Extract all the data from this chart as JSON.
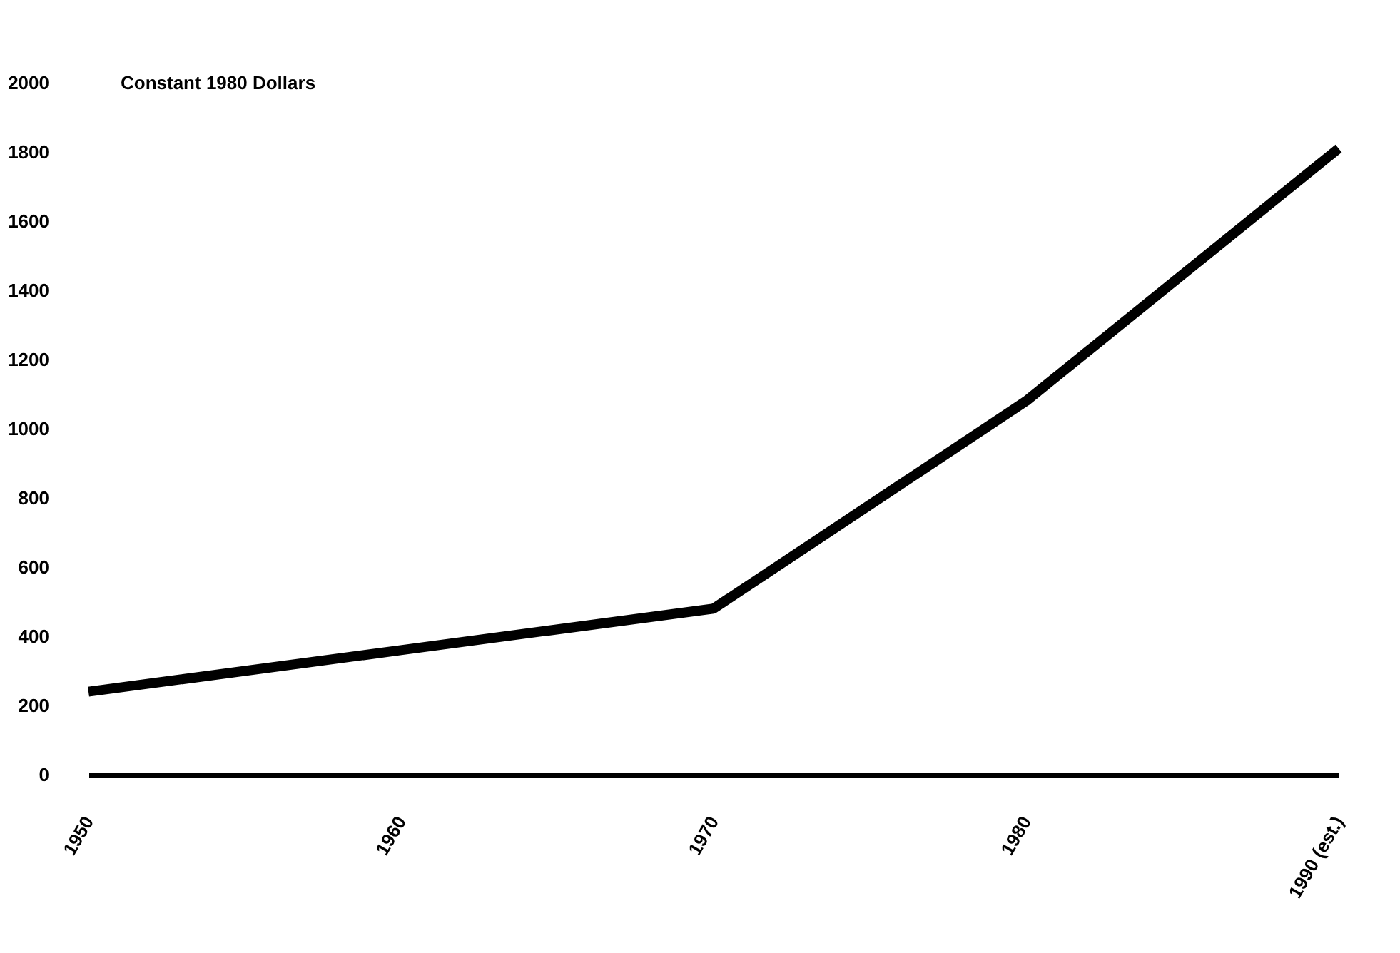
{
  "chart_data": {
    "type": "line",
    "ylabel": "Constant 1980 Dollars",
    "categories": [
      "1950",
      "1960",
      "1970",
      "1980",
      "1990 (est.)"
    ],
    "series": [
      {
        "color": "#000000",
        "values": [
          240,
          360,
          480,
          1080,
          1810
        ]
      }
    ],
    "ylim": [
      0,
      2000
    ],
    "yticks": [
      0,
      200,
      400,
      600,
      800,
      1000,
      1200,
      1400,
      1600,
      1800,
      2000
    ],
    "grid": false,
    "marker": "none",
    "line_style": "solid"
  }
}
